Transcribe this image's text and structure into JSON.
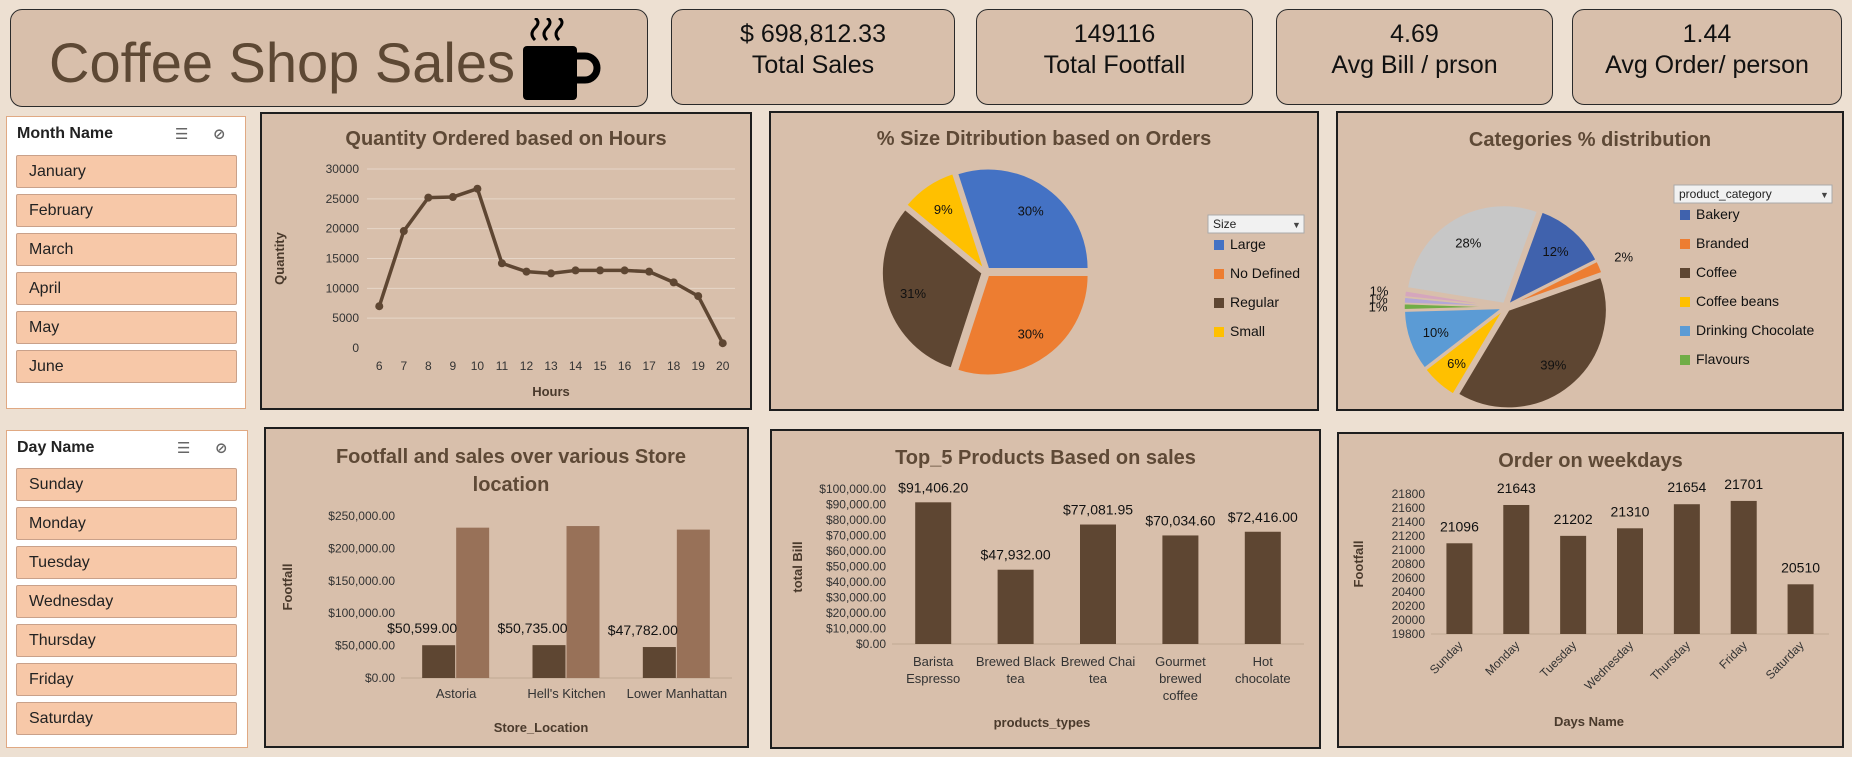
{
  "header": {
    "title": "Coffee Shop Sales"
  },
  "kpis": [
    {
      "value": "$ 698,812.33",
      "label": "Total Sales"
    },
    {
      "value": "149116",
      "label": "Total Footfall"
    },
    {
      "value": "4.69",
      "label": "Avg Bill / prson"
    },
    {
      "value": "1.44",
      "label": "Avg Order/ person"
    }
  ],
  "slicers": {
    "month": {
      "title": "Month Name",
      "items": [
        "January",
        "February",
        "March",
        "April",
        "May",
        "June"
      ]
    },
    "day": {
      "title": "Day Name",
      "items": [
        "Sunday",
        "Monday",
        "Tuesday",
        "Wednesday",
        "Thursday",
        "Friday",
        "Saturday"
      ]
    }
  },
  "colors": {
    "brown": "#5e4632",
    "lightbrown": "#987158",
    "blue": "#4472c4",
    "orange": "#ed7d31",
    "yellow": "#ffc000",
    "grey": "#c7c7c7",
    "lightblue": "#5b9bd5",
    "green": "#70ad47"
  },
  "chart_data": [
    {
      "type": "line",
      "title": "Quantity Ordered based on Hours",
      "xlabel": "Hours",
      "ylabel": "Quantity",
      "x": [
        6,
        7,
        8,
        9,
        10,
        11,
        12,
        13,
        14,
        15,
        16,
        17,
        18,
        19,
        20
      ],
      "values": [
        7000,
        19600,
        25200,
        25300,
        26700,
        14200,
        12800,
        12500,
        13000,
        13000,
        13000,
        12800,
        11000,
        8700,
        800
      ],
      "ylim": [
        0,
        30000
      ],
      "yticks": [
        "0",
        "5000",
        "10000",
        "15000",
        "20000",
        "25000",
        "30000"
      ],
      "grid": true
    },
    {
      "type": "pie",
      "title": "% Size Ditribution based on Orders",
      "legend_title": "Size",
      "legend_position": "right",
      "slices": [
        {
          "label": "Large",
          "value": 30,
          "text": "30%",
          "color": "#4472c4"
        },
        {
          "label": "No Defined",
          "value": 30,
          "text": "30%",
          "color": "#ed7d31"
        },
        {
          "label": "Regular",
          "value": 31,
          "text": "31%",
          "color": "#5e4632"
        },
        {
          "label": "Small",
          "value": 9,
          "text": "9%",
          "color": "#ffc000"
        }
      ]
    },
    {
      "type": "pie",
      "title": "Categories % distribution",
      "legend_title": "product_category",
      "legend_position": "right",
      "slices": [
        {
          "label": "Bakery",
          "value": 12,
          "text": "12%",
          "color": "#4062ad"
        },
        {
          "label": "Branded",
          "value": 2,
          "text": "2%",
          "color": "#ed7d31"
        },
        {
          "label": "Coffee",
          "value": 39,
          "text": "39%",
          "color": "#5e4632"
        },
        {
          "label": "Coffee beans",
          "value": 6,
          "text": "6%",
          "color": "#ffc000"
        },
        {
          "label": "Drinking Chocolate",
          "value": 10,
          "text": "10%",
          "color": "#5b9bd5"
        },
        {
          "label": "Flavours",
          "value": 1,
          "text": "1%",
          "color": "#70ad47"
        },
        {
          "label": "",
          "value": 1,
          "text": "1%",
          "color": "#b4a7d6"
        },
        {
          "label": "",
          "value": 1,
          "text": "1%",
          "color": "#d5a6bd"
        },
        {
          "label": "",
          "value": 28,
          "text": "28%",
          "color": "#c7c7c7"
        }
      ]
    },
    {
      "type": "bar",
      "title": "Footfall and sales over various Store location",
      "xlabel": "Store_Location",
      "ylabel": "Footfall",
      "categories": [
        "Astoria",
        "Hell's Kitchen",
        "Lower Manhattan"
      ],
      "series": [
        {
          "values": [
            50599,
            50735,
            47782
          ],
          "labels": [
            "$50,599.00",
            "$50,735.00",
            "$47,782.00"
          ],
          "color": "#5e4632"
        },
        {
          "values": [
            232000,
            234500,
            229000
          ],
          "color": "#987158"
        }
      ],
      "ylim": [
        0,
        250000
      ],
      "yticks": [
        "$0.00",
        "$50,000.00",
        "$100,000.00",
        "$150,000.00",
        "$200,000.00",
        "$250,000.00"
      ]
    },
    {
      "type": "bar",
      "title": "Top_5 Products Based on sales",
      "xlabel": "products_types",
      "ylabel": "total Bill",
      "categories": [
        [
          "Barista",
          "Espresso"
        ],
        [
          "Brewed Black",
          "tea"
        ],
        [
          "Brewed Chai",
          "tea"
        ],
        [
          "Gourmet",
          "brewed",
          "coffee"
        ],
        [
          "Hot",
          "chocolate"
        ]
      ],
      "values": [
        91406.2,
        47932,
        77081.95,
        70034.6,
        72416
      ],
      "labels": [
        "$91,406.20",
        "$47,932.00",
        "$77,081.95",
        "$70,034.60",
        "$72,416.00"
      ],
      "ylim": [
        0,
        100000
      ],
      "yticks": [
        "$0.00",
        "$10,000.00",
        "$20,000.00",
        "$30,000.00",
        "$40,000.00",
        "$50,000.00",
        "$60,000.00",
        "$70,000.00",
        "$80,000.00",
        "$90,000.00",
        "$100,000.00"
      ]
    },
    {
      "type": "bar",
      "title": "Order on weekdays",
      "xlabel": "Days Name",
      "ylabel": "Footfall",
      "categories": [
        "Sunday",
        "Monday",
        "Tuesday",
        "Wednesday",
        "Thursday",
        "Friday",
        "Saturday"
      ],
      "values": [
        21096,
        21643,
        21202,
        21310,
        21654,
        21701,
        20510
      ],
      "labels": [
        "21096",
        "21643",
        "21202",
        "21310",
        "21654",
        "21701",
        "20510"
      ],
      "ylim": [
        19800,
        21800
      ],
      "yticks": [
        "19800",
        "20000",
        "20200",
        "20400",
        "20600",
        "20800",
        "21000",
        "21200",
        "21400",
        "21600",
        "21800"
      ]
    }
  ]
}
